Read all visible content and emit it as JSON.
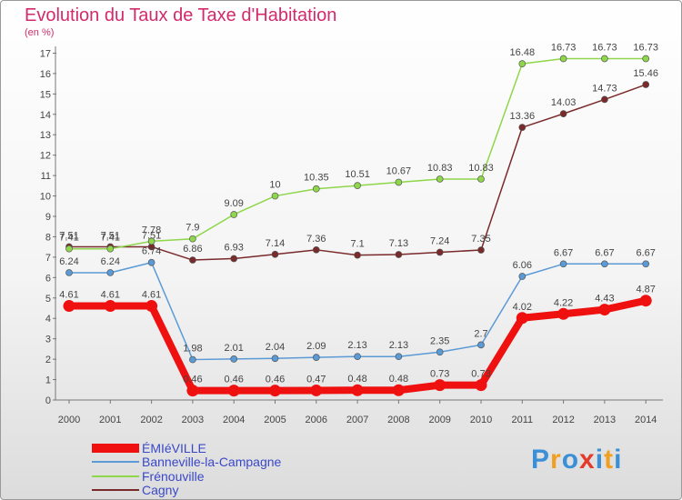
{
  "title": "Evolution du Taux de Taxe d'Habitation",
  "subtitle": "(en %)",
  "logo": {
    "text": "Proxiti",
    "letter_colors": [
      "#3b8fd6",
      "#f0a020",
      "#3b8fd6",
      "#e43a2c",
      "#3b8fd6",
      "#f0a020",
      "#3b8fd6"
    ]
  },
  "chart_data": {
    "type": "line",
    "title": "Evolution du Taux de Taxe d'Habitation",
    "ylabel": "(en %)",
    "x": [
      "2000",
      "2001",
      "2002",
      "2003",
      "2004",
      "2005",
      "2006",
      "2007",
      "2008",
      "2009",
      "2010",
      "2011",
      "2012",
      "2013",
      "2014"
    ],
    "ylim": [
      0,
      17.6
    ],
    "yticks": [
      0,
      1,
      2,
      3,
      4,
      5,
      6,
      7,
      8,
      9,
      10,
      11,
      12,
      13,
      14,
      15,
      16,
      17
    ],
    "grid": false,
    "legend": "bottom-left",
    "series": [
      {
        "name": "ÉMIéVILLE",
        "color": "#ef1010",
        "bold": true,
        "values": [
          4.61,
          4.61,
          4.61,
          0.46,
          0.46,
          0.46,
          0.47,
          0.48,
          0.48,
          0.73,
          0.73,
          4.02,
          4.22,
          4.43,
          4.87
        ],
        "labels": [
          "4.61",
          "4.61",
          "4.61",
          "0.46",
          "0.46",
          "0.46",
          "0.47",
          "0.48",
          "0.48",
          "0.73",
          "0.73",
          "4.02",
          "4.22",
          "4.43",
          "4.87"
        ]
      },
      {
        "name": "Banneville-la-Campagne",
        "color": "#5a9ad6",
        "values": [
          6.24,
          6.24,
          6.74,
          1.98,
          2.01,
          2.04,
          2.09,
          2.13,
          2.13,
          2.35,
          2.7,
          6.06,
          6.67,
          6.67,
          6.67
        ],
        "labels": [
          "6.24",
          "6.24",
          "6.74",
          "1.98",
          "2.01",
          "2.04",
          "2.09",
          "2.13",
          "2.13",
          "2.35",
          "2.7",
          "6.06",
          "6.67",
          "6.67",
          "6.67"
        ]
      },
      {
        "name": "Frénouville",
        "color": "#8ed64a",
        "values": [
          7.41,
          7.41,
          7.78,
          7.9,
          9.09,
          10,
          10.35,
          10.51,
          10.67,
          10.83,
          10.83,
          16.48,
          16.73,
          16.73,
          16.73
        ],
        "labels": [
          "7.41",
          "7.41",
          "7.78",
          "7.9",
          "9.09",
          "10",
          "10.35",
          "10.51",
          "10.67",
          "10.83",
          "10.83",
          "16.48",
          "16.73",
          "16.73",
          "16.73"
        ]
      },
      {
        "name": "Cagny",
        "color": "#7a2a2a",
        "values": [
          7.51,
          7.51,
          7.51,
          6.86,
          6.93,
          7.14,
          7.36,
          7.1,
          7.13,
          7.24,
          7.35,
          13.36,
          14.03,
          14.73,
          15.46
        ],
        "labels": [
          "7.51",
          "7.51",
          "7.51",
          "6.86",
          "6.93",
          "7.14",
          "7.36",
          "7.1",
          "7.13",
          "7.24",
          "7.35",
          "13.36",
          "14.03",
          "14.73",
          "15.46"
        ]
      }
    ]
  }
}
